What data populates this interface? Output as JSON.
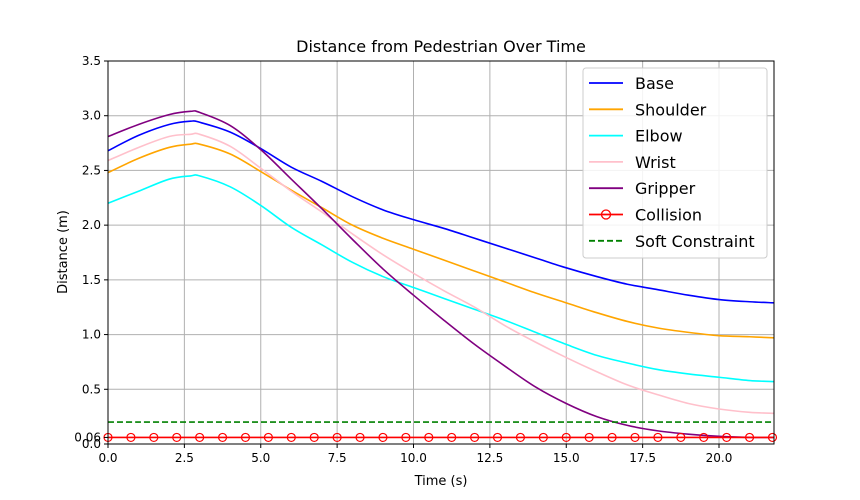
{
  "chart_data": {
    "type": "line",
    "title": "Distance from Pedestrian Over Time",
    "xlabel": "Time (s)",
    "ylabel": "Distance (m)",
    "xlim": [
      0,
      21.8
    ],
    "ylim": [
      0,
      3.5
    ],
    "xticks": [
      0.0,
      2.5,
      5.0,
      7.5,
      10.0,
      12.5,
      15.0,
      17.5,
      20.0
    ],
    "xtick_labels": [
      "0.0",
      "2.5",
      "5.0",
      "7.5",
      "10.0",
      "12.5",
      "15.0",
      "17.5",
      "20.0"
    ],
    "yticks": [
      0.0,
      0.06,
      0.5,
      1.0,
      1.5,
      2.0,
      2.5,
      3.0,
      3.5
    ],
    "ytick_labels": [
      "0.0",
      "0.06",
      "0.5",
      "1.0",
      "1.5",
      "2.0",
      "2.5",
      "3.0",
      "3.5"
    ],
    "grid": true,
    "legend_position": "top-right",
    "x": [
      0,
      1,
      2,
      2.7,
      3,
      4,
      5,
      6,
      7,
      8,
      9,
      10,
      11,
      12,
      13,
      14,
      15,
      16,
      17,
      18,
      19,
      20,
      21,
      21.8
    ],
    "series": [
      {
        "name": "Base",
        "color": "#0000ff",
        "style": "solid",
        "values": [
          2.68,
          2.82,
          2.92,
          2.95,
          2.94,
          2.85,
          2.7,
          2.53,
          2.4,
          2.26,
          2.14,
          2.05,
          1.97,
          1.88,
          1.79,
          1.7,
          1.61,
          1.53,
          1.46,
          1.41,
          1.36,
          1.32,
          1.3,
          1.29
        ]
      },
      {
        "name": "Shoulder",
        "color": "#ffa500",
        "style": "solid",
        "values": [
          2.48,
          2.61,
          2.71,
          2.74,
          2.74,
          2.65,
          2.49,
          2.32,
          2.16,
          2.0,
          1.88,
          1.78,
          1.68,
          1.58,
          1.48,
          1.38,
          1.29,
          1.2,
          1.12,
          1.06,
          1.02,
          0.99,
          0.98,
          0.97
        ]
      },
      {
        "name": "Elbow",
        "color": "#00ffff",
        "style": "solid",
        "values": [
          2.2,
          2.31,
          2.42,
          2.45,
          2.45,
          2.35,
          2.18,
          1.98,
          1.82,
          1.66,
          1.53,
          1.43,
          1.33,
          1.23,
          1.13,
          1.02,
          0.91,
          0.81,
          0.74,
          0.68,
          0.64,
          0.61,
          0.58,
          0.57
        ]
      },
      {
        "name": "Wrist",
        "color": "#ffc0cb",
        "style": "solid",
        "values": [
          2.59,
          2.71,
          2.81,
          2.83,
          2.83,
          2.72,
          2.52,
          2.31,
          2.12,
          1.92,
          1.73,
          1.56,
          1.4,
          1.25,
          1.08,
          0.93,
          0.79,
          0.66,
          0.54,
          0.45,
          0.37,
          0.32,
          0.29,
          0.28
        ]
      },
      {
        "name": "Gripper",
        "color": "#800080",
        "style": "solid",
        "values": [
          2.81,
          2.92,
          3.01,
          3.04,
          3.03,
          2.91,
          2.69,
          2.42,
          2.15,
          1.87,
          1.6,
          1.36,
          1.13,
          0.91,
          0.71,
          0.52,
          0.37,
          0.25,
          0.17,
          0.12,
          0.09,
          0.07,
          0.06,
          0.06
        ]
      },
      {
        "name": "Collision",
        "color": "#ff0000",
        "style": "solid",
        "marker": "circle",
        "values": [
          0.06,
          0.06,
          0.06,
          0.06,
          0.06,
          0.06,
          0.06,
          0.06,
          0.06,
          0.06,
          0.06,
          0.06,
          0.06,
          0.06,
          0.06,
          0.06,
          0.06,
          0.06,
          0.06,
          0.06,
          0.06,
          0.06,
          0.06,
          0.06
        ]
      },
      {
        "name": "Soft Constraint",
        "color": "#008000",
        "style": "dashed",
        "values": [
          0.2,
          0.2,
          0.2,
          0.2,
          0.2,
          0.2,
          0.2,
          0.2,
          0.2,
          0.2,
          0.2,
          0.2,
          0.2,
          0.2,
          0.2,
          0.2,
          0.2,
          0.2,
          0.2,
          0.2,
          0.2,
          0.2,
          0.2,
          0.2
        ]
      }
    ],
    "collision_marker_x": [
      0,
      0.75,
      1.5,
      2.25,
      3.0,
      3.75,
      4.5,
      5.25,
      6.0,
      6.75,
      7.5,
      8.25,
      9.0,
      9.75,
      10.5,
      11.25,
      12.0,
      12.75,
      13.5,
      14.25,
      15.0,
      15.75,
      16.5,
      17.25,
      18.0,
      18.75,
      19.5,
      20.25,
      21.0,
      21.75
    ]
  }
}
